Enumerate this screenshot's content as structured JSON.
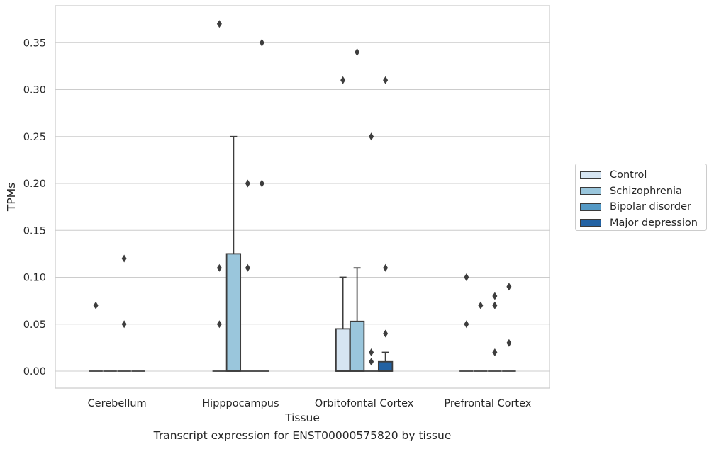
{
  "caption": "Transcript expression for ENST00000575820 by tissue",
  "legend": [
    {
      "label": "Control",
      "color": "#d6e5f2"
    },
    {
      "label": "Schizophrenia",
      "color": "#9ac6dc"
    },
    {
      "label": "Bipolar disorder",
      "color": "#5499c5"
    },
    {
      "label": "Major depression",
      "color": "#2362a3"
    }
  ],
  "chart_data": {
    "type": "box",
    "title": "",
    "xlabel": "Tissue",
    "ylabel": "TPMs",
    "ylim": [
      -0.018,
      0.389
    ],
    "yticks": [
      0.0,
      0.05,
      0.1,
      0.15,
      0.2,
      0.25,
      0.3,
      0.35
    ],
    "ytick_labels": [
      "0.00",
      "0.05",
      "0.10",
      "0.15",
      "0.20",
      "0.25",
      "0.30",
      "0.35"
    ],
    "grid": "horizontal",
    "legend_position": "right",
    "categories": [
      "Cerebellum",
      "Hipppocampus",
      "Orbitofontal Cortex",
      "Prefrontal Cortex"
    ],
    "series": [
      {
        "name": "Control",
        "boxes": [
          {
            "q1": 0,
            "median": 0,
            "q3": 0,
            "whisker_low": 0,
            "whisker_high": 0,
            "outliers": [
              0.07
            ]
          },
          {
            "q1": 0,
            "median": 0,
            "q3": 0,
            "whisker_low": 0,
            "whisker_high": 0,
            "outliers": [
              0.11,
              0.05,
              0.37
            ]
          },
          {
            "q1": 0,
            "median": 0,
            "q3": 0.045,
            "whisker_low": 0,
            "whisker_high": 0.1,
            "outliers": [
              0.31
            ]
          },
          {
            "q1": 0,
            "median": 0,
            "q3": 0,
            "whisker_low": 0,
            "whisker_high": 0,
            "outliers": [
              0.1,
              0.05
            ]
          }
        ]
      },
      {
        "name": "Schizophrenia",
        "boxes": [
          {
            "q1": 0,
            "median": 0,
            "q3": 0,
            "whisker_low": 0,
            "whisker_high": 0,
            "outliers": []
          },
          {
            "q1": 0,
            "median": 0,
            "q3": 0.125,
            "whisker_low": 0,
            "whisker_high": 0.25,
            "outliers": []
          },
          {
            "q1": 0,
            "median": 0,
            "q3": 0.053,
            "whisker_low": 0,
            "whisker_high": 0.11,
            "outliers": [
              0.34
            ]
          },
          {
            "q1": 0,
            "median": 0,
            "q3": 0,
            "whisker_low": 0,
            "whisker_high": 0,
            "outliers": [
              0.07
            ]
          }
        ]
      },
      {
        "name": "Bipolar disorder",
        "boxes": [
          {
            "q1": 0,
            "median": 0,
            "q3": 0,
            "whisker_low": 0,
            "whisker_high": 0,
            "outliers": [
              0.12,
              0.05
            ]
          },
          {
            "q1": 0,
            "median": 0,
            "q3": 0,
            "whisker_low": 0,
            "whisker_high": 0,
            "outliers": [
              0.2,
              0.11
            ]
          },
          {
            "q1": 0,
            "median": 0,
            "q3": 0,
            "whisker_low": 0,
            "whisker_high": 0,
            "outliers": [
              0.25,
              0.02,
              0.01
            ]
          },
          {
            "q1": 0,
            "median": 0,
            "q3": 0,
            "whisker_low": 0,
            "whisker_high": 0,
            "outliers": [
              0.08,
              0.07,
              0.02
            ]
          }
        ]
      },
      {
        "name": "Major depression",
        "boxes": [
          {
            "q1": 0,
            "median": 0,
            "q3": 0,
            "whisker_low": 0,
            "whisker_high": 0,
            "outliers": []
          },
          {
            "q1": 0,
            "median": 0,
            "q3": 0,
            "whisker_low": 0,
            "whisker_high": 0,
            "outliers": [
              0.35,
              0.2
            ]
          },
          {
            "q1": 0,
            "median": 0,
            "q3": 0.01,
            "whisker_low": 0,
            "whisker_high": 0.02,
            "outliers": [
              0.31,
              0.11,
              0.04
            ]
          },
          {
            "q1": 0,
            "median": 0,
            "q3": 0,
            "whisker_low": 0,
            "whisker_high": 0,
            "outliers": [
              0.09,
              0.03
            ]
          }
        ]
      }
    ]
  }
}
